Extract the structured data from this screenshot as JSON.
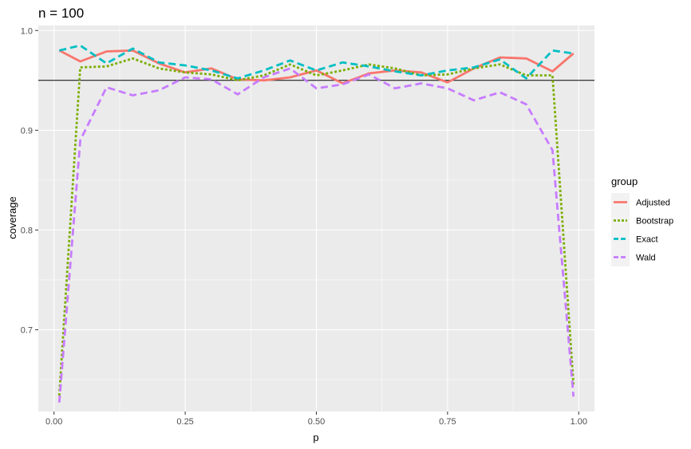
{
  "chart_data": {
    "type": "line",
    "title": "n = 100",
    "xlabel": "p",
    "ylabel": "coverage",
    "xlim": [
      -0.03,
      1.03
    ],
    "ylim": [
      0.618,
      1.005
    ],
    "x_ticks": [
      0.0,
      0.25,
      0.5,
      0.75,
      1.0
    ],
    "x_tick_labels": [
      "0.00",
      "0.25",
      "0.50",
      "0.75",
      "1.00"
    ],
    "y_ticks": [
      0.7,
      0.8,
      0.9,
      1.0
    ],
    "y_tick_labels": [
      "0.7",
      "0.8",
      "0.9",
      "1.0"
    ],
    "reference_line": 0.95,
    "grid": true,
    "legend_title": "group",
    "legend_position": "right",
    "x": [
      0.01,
      0.05,
      0.1,
      0.15,
      0.2,
      0.25,
      0.3,
      0.35,
      0.4,
      0.45,
      0.5,
      0.55,
      0.6,
      0.65,
      0.7,
      0.75,
      0.8,
      0.85,
      0.9,
      0.95,
      0.99
    ],
    "series": [
      {
        "name": "Adjusted",
        "color": "#F8766D",
        "dash": "solid",
        "values": [
          0.98,
          0.969,
          0.979,
          0.98,
          0.967,
          0.958,
          0.962,
          0.951,
          0.95,
          0.953,
          0.96,
          0.947,
          0.957,
          0.96,
          0.958,
          0.948,
          0.962,
          0.973,
          0.972,
          0.959,
          0.977
        ]
      },
      {
        "name": "Bootstrap",
        "color": "#7CAE00",
        "dash": "dotted",
        "values": [
          0.634,
          0.963,
          0.964,
          0.972,
          0.962,
          0.958,
          0.956,
          0.95,
          0.955,
          0.966,
          0.955,
          0.96,
          0.966,
          0.962,
          0.955,
          0.956,
          0.962,
          0.966,
          0.955,
          0.955,
          0.645
        ]
      },
      {
        "name": "Exact",
        "color": "#00BFC4",
        "dash": "dashed",
        "values": [
          0.98,
          0.985,
          0.967,
          0.982,
          0.968,
          0.965,
          0.96,
          0.952,
          0.96,
          0.97,
          0.96,
          0.968,
          0.964,
          0.959,
          0.955,
          0.96,
          0.963,
          0.971,
          0.952,
          0.98,
          0.977
        ]
      },
      {
        "name": "Wald",
        "color": "#C77CFF",
        "dash": "dashed",
        "values": [
          0.627,
          0.89,
          0.943,
          0.935,
          0.94,
          0.953,
          0.951,
          0.936,
          0.953,
          0.962,
          0.942,
          0.946,
          0.956,
          0.942,
          0.947,
          0.942,
          0.93,
          0.938,
          0.926,
          0.88,
          0.633
        ]
      }
    ]
  }
}
